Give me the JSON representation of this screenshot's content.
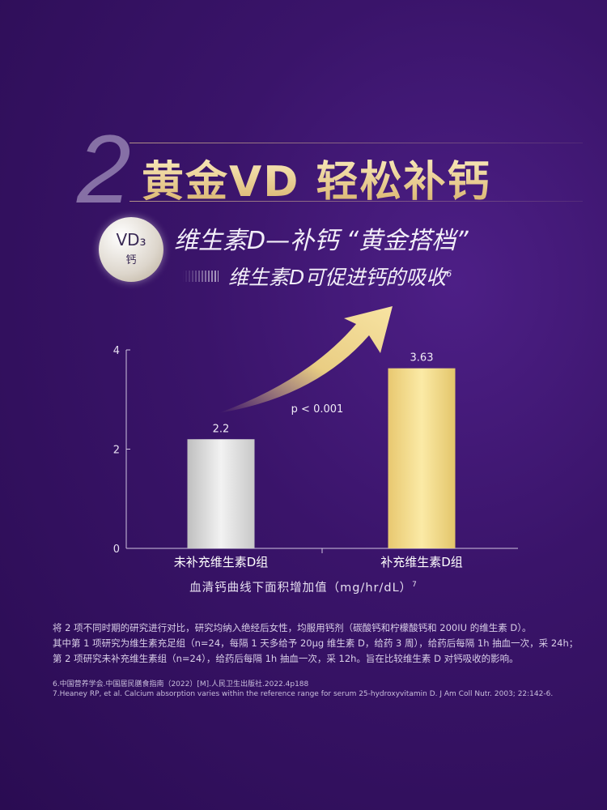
{
  "header": {
    "number": "2",
    "title": "黄金VD 轻松补钙",
    "badge_top": "VD₃",
    "badge_bottom": "钙",
    "subtitle": "维生素D—补钙 “黄金搭档”",
    "claim": "维生素D可促进钙的吸收",
    "claim_ref": "6"
  },
  "chart_data": {
    "type": "bar",
    "categories": [
      "未补充维生素D组",
      "补充维生素D组"
    ],
    "values": [
      2.2,
      3.63
    ],
    "value_labels": [
      "2.2",
      "3.63"
    ],
    "colors": [
      "#d8d8d8",
      "#f3dc8a"
    ],
    "ylim": [
      0,
      4
    ],
    "yticks": [
      "0",
      "2",
      "4"
    ],
    "xlabel": "血清钙曲线下面积增加值（mg/hr/dL）",
    "xlabel_ref": "7",
    "annotation": "p < 0.001",
    "grid": false
  },
  "notes": [
    "将 2 项不同时期的研究进行对比，研究均纳入绝经后女性，均服用钙剂（碳酸钙和柠檬酸钙和 200IU 的维生素 D）。",
    "其中第 1 项研究为维生素充足组（n=24，每隔 1 天多给予 20μg 维生素 D，给药 3 周），给药后每隔 1h 抽血一次，采 24h；",
    "第 2 项研究未补充维生素组（n=24），给药后每隔 1h 抽血一次，采 12h。旨在比较维生素 D 对钙吸收的影响。"
  ],
  "references": [
    "6.中国营养学会.中国居民膳食指南（2022）[M].人民卫生出版社.2022.4p188",
    "7.Heaney RP, et al.   Calcium absorption varies within the reference range for serum 25-hydroxyvitamin   D. J Am Coll Nutr. 2003; 22:142-6."
  ]
}
